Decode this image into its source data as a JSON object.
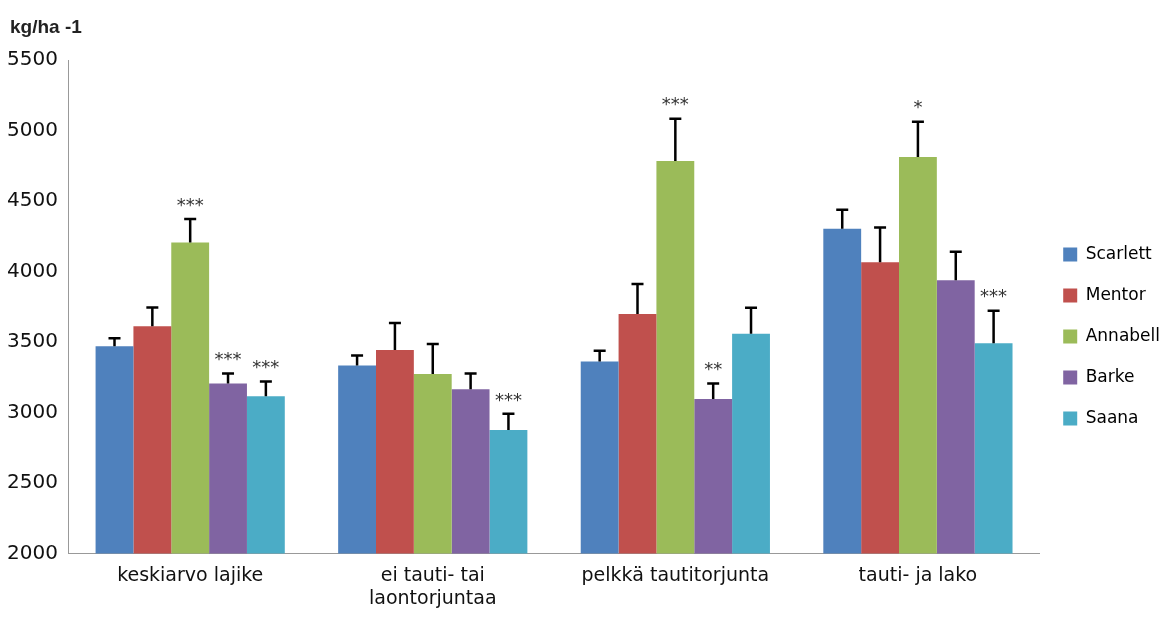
{
  "chart_data": {
    "type": "bar",
    "ylabel": "kg/ha -1",
    "categories": [
      "keskiarvo lajike",
      "ei tauti- tai laontorjuntaa",
      "pelkkä tautitorjunta",
      "tauti- ja lako"
    ],
    "series": [
      {
        "name": "Scarlett",
        "color": "#4f81bd",
        "values": [
          3470,
          3333,
          3361,
          4303
        ],
        "errors": [
          [
            3470,
            3526
          ],
          [
            3333,
            3404
          ],
          [
            3361,
            3438
          ],
          [
            4303,
            4437
          ]
        ]
      },
      {
        "name": "Mentor",
        "color": "#c0504d",
        "values": [
          3612,
          3443,
          3699,
          4066
        ],
        "errors": [
          [
            3612,
            3745
          ],
          [
            3443,
            3634
          ],
          [
            3699,
            3911
          ],
          [
            4066,
            4311
          ]
        ]
      },
      {
        "name": "Annabell",
        "color": "#9bbb59",
        "values": [
          4206,
          3272,
          4783,
          4812
        ],
        "errors": [
          [
            4206,
            4372
          ],
          [
            3272,
            3485
          ],
          [
            4783,
            5083
          ],
          [
            4812,
            5062
          ]
        ]
      },
      {
        "name": "Barke",
        "color": "#8064a2",
        "values": [
          3205,
          3164,
          3095,
          3937
        ],
        "errors": [
          [
            3205,
            3277
          ],
          [
            3164,
            3277
          ],
          [
            3095,
            3206
          ],
          [
            3937,
            4140
          ]
        ]
      },
      {
        "name": "Saana",
        "color": "#4bacc6",
        "values": [
          3114,
          2876,
          3559,
          3490
        ],
        "errors": [
          [
            3114,
            3219
          ],
          [
            2876,
            2990
          ],
          [
            3559,
            3743
          ],
          [
            3490,
            3722
          ]
        ]
      }
    ],
    "annotations": [
      {
        "text": "***",
        "x": "keskiarvo lajike",
        "y": 4372
      },
      "***",
      "***",
      "***",
      {
        "text": "***",
        "x": "pelkkä tautitorjunta",
        "y": 5083
      },
      "**",
      {
        "text": "*",
        "x": "tauti- ja lako",
        "y": 5062
      },
      "***"
    ],
    "ylim": [
      2000,
      5500
    ],
    "yticks": [
      2000,
      2500,
      3000,
      3500,
      4000,
      4500,
      5000,
      5500
    ],
    "grid": false,
    "legend": "right"
  }
}
